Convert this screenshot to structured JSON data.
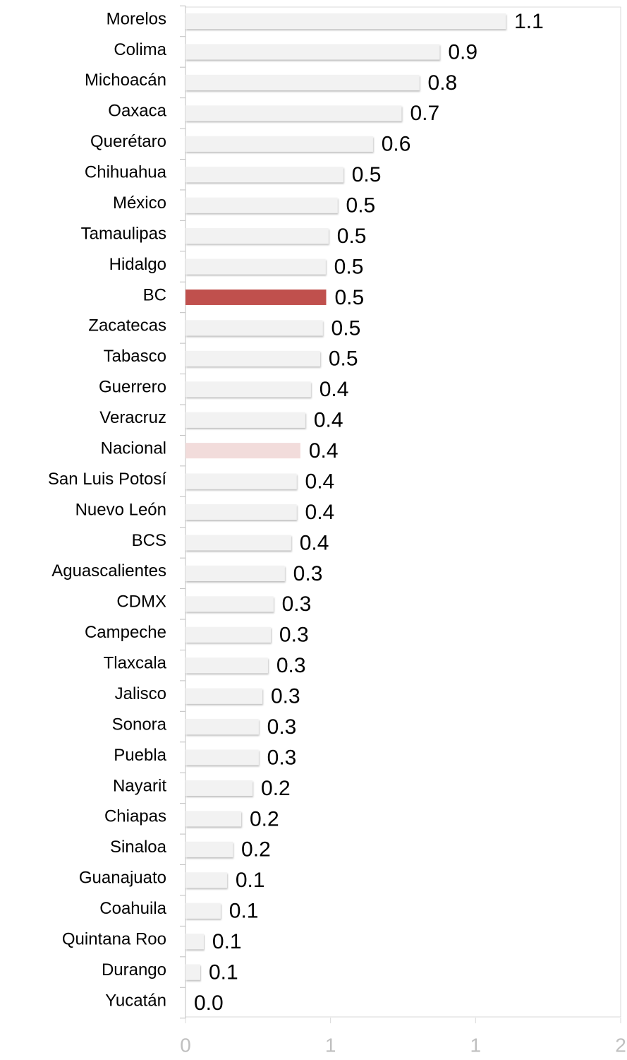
{
  "chart_data": {
    "type": "barh",
    "categories": [
      "Morelos",
      "Colima",
      "Michoacán",
      "Oaxaca",
      "Querétaro",
      "Chihuahua",
      "México",
      "Tamaulipas",
      "Hidalgo",
      "BC",
      "Zacatecas",
      "Tabasco",
      "Guerrero",
      "Veracruz",
      "Nacional",
      "San Luis Potosí",
      "Nuevo León",
      "BCS",
      "Aguascalientes",
      "CDMX",
      "Campeche",
      "Tlaxcala",
      "Jalisco",
      "Sonora",
      "Puebla",
      "Nayarit",
      "Chiapas",
      "Sinaloa",
      "Guanajuato",
      "Coahuila",
      "Quintana Roo",
      "Durango",
      "Yucatán"
    ],
    "values": [
      1.104,
      0.876,
      0.806,
      0.745,
      0.646,
      0.544,
      0.524,
      0.493,
      0.483,
      0.485,
      0.473,
      0.464,
      0.432,
      0.413,
      0.396,
      0.383,
      0.383,
      0.364,
      0.342,
      0.303,
      0.294,
      0.284,
      0.265,
      0.252,
      0.252,
      0.231,
      0.192,
      0.163,
      0.143,
      0.121,
      0.063,
      0.051,
      0
    ],
    "value_labels": [
      "1.1",
      "0.9",
      "0.8",
      "0.7",
      "0.6",
      "0.5",
      "0.5",
      "0.5",
      "0.5",
      "0.5",
      "0.5",
      "0.5",
      "0.4",
      "0.4",
      "0.4",
      "0.4",
      "0.4",
      "0.4",
      "0.3",
      "0.3",
      "0.3",
      "0.3",
      "0.3",
      "0.3",
      "0.3",
      "0.2",
      "0.2",
      "0.2",
      "0.1",
      "0.1",
      "0.1",
      "0.1",
      "0.0"
    ],
    "colors": [
      "#f2f2f2",
      "#f2f2f2",
      "#f2f2f2",
      "#f2f2f2",
      "#f2f2f2",
      "#f2f2f2",
      "#f2f2f2",
      "#f2f2f2",
      "#f2f2f2",
      "#c0504d",
      "#f2f2f2",
      "#f2f2f2",
      "#f2f2f2",
      "#f2f2f2",
      "#f2dcdb",
      "#f2f2f2",
      "#f2f2f2",
      "#f2f2f2",
      "#f2f2f2",
      "#f2f2f2",
      "#f2f2f2",
      "#f2f2f2",
      "#f2f2f2",
      "#f2f2f2",
      "#f2f2f2",
      "#f2f2f2",
      "#f2f2f2",
      "#f2f2f2",
      "#f2f2f2",
      "#f2f2f2",
      "#f2f2f2",
      "#f2f2f2",
      "#f2f2f2"
    ],
    "xlim": [
      0,
      1.5
    ],
    "xticks": [
      0,
      {
        "value": 0.5,
        "label": "1"
      },
      1,
      {
        "value": 1.5,
        "label": "2"
      }
    ]
  }
}
